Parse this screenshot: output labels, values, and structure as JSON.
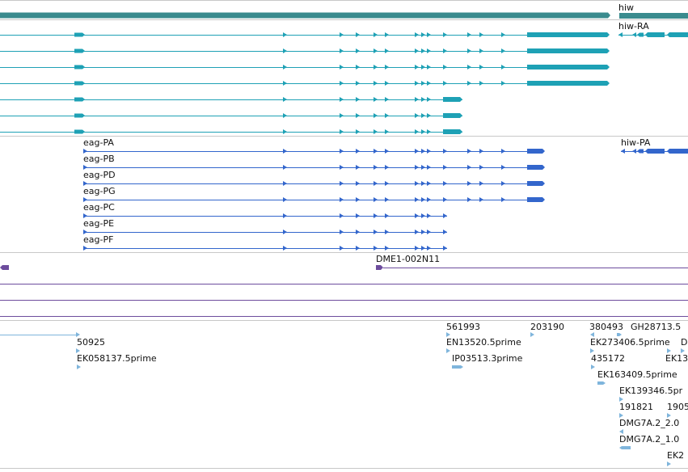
{
  "colors": {
    "gene": "#3a8b8e",
    "mrna": "#1ea1b5",
    "protein": "#3366cc",
    "clone": "#6d4c9d",
    "est": "#7fb5dc",
    "separator": "#c8c8c8"
  },
  "gene_track": {
    "label": "hiw"
  },
  "mrna_track": {
    "right_label": "hiw-RA",
    "rows": [
      "",
      "",
      "",
      "",
      "",
      "",
      ""
    ]
  },
  "protein_track": {
    "right_label": "hiw-PA",
    "rows": [
      "eag-PA",
      "eag-PB",
      "eag-PD",
      "eag-PG",
      "eag-PC",
      "eag-PE",
      "eag-PF"
    ]
  },
  "clone_track": {
    "label": "DME1-002N11"
  },
  "est_track": {
    "labels": [
      "50925",
      "EK058137.5prime",
      "561993",
      "203190",
      "EN13520.5prime",
      "IP03513.3prime",
      "380493",
      "GH28713.5",
      "EK273406.5prime",
      "D",
      "435172",
      "EK13",
      "EK163409.5prime",
      "EK139346.5pr",
      "191821",
      "1905",
      "DMG7A.2_2.0",
      "DMG7A.2_1.0",
      "EK2"
    ]
  }
}
